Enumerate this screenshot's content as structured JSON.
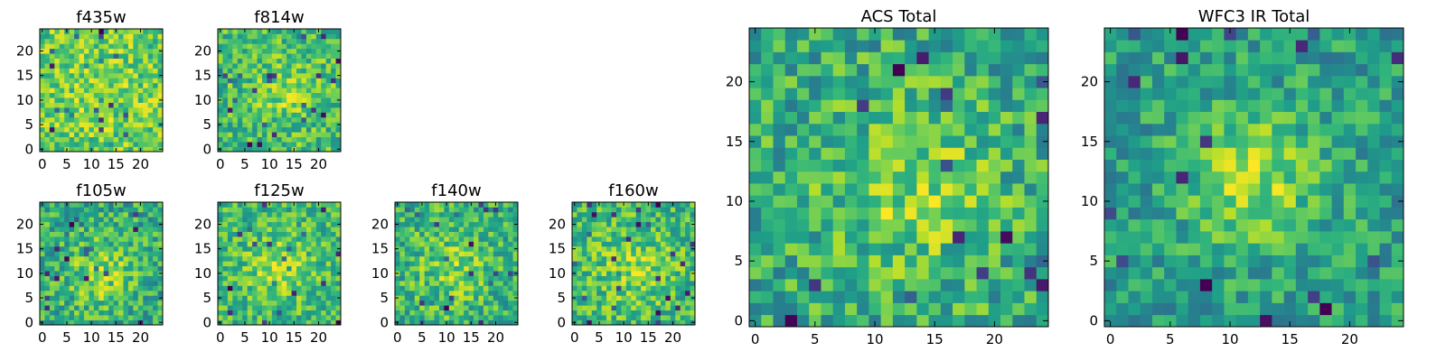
{
  "chart_data": [
    {
      "type": "heatmap",
      "title": "f435w",
      "size": 25,
      "seed": 11,
      "peak": [
        12,
        12
      ],
      "sigma": 6,
      "amp": 0.05,
      "xticks": [
        0,
        5,
        10,
        15,
        20
      ],
      "yticks": [
        0,
        5,
        10,
        15,
        20
      ],
      "xlim": [
        -0.5,
        24.5
      ],
      "ylim": [
        -0.5,
        24.5
      ],
      "colormap": "viridis"
    },
    {
      "type": "heatmap",
      "title": "f814w",
      "size": 25,
      "seed": 23,
      "peak": [
        13,
        12
      ],
      "sigma": 4,
      "amp": 0.2,
      "xticks": [
        0,
        5,
        10,
        15,
        20
      ],
      "yticks": [
        0,
        5,
        10,
        15,
        20
      ],
      "xlim": [
        -0.5,
        24.5
      ],
      "ylim": [
        -0.5,
        24.5
      ],
      "colormap": "viridis"
    },
    {
      "type": "heatmap",
      "title": "f105w",
      "size": 25,
      "seed": 37,
      "peak": [
        12,
        10
      ],
      "sigma": 5,
      "amp": 0.25,
      "xticks": [
        0,
        5,
        10,
        15,
        20
      ],
      "yticks": [
        0,
        5,
        10,
        15,
        20
      ],
      "xlim": [
        -0.5,
        24.5
      ],
      "ylim": [
        -0.5,
        24.5
      ],
      "colormap": "viridis"
    },
    {
      "type": "heatmap",
      "title": "f125w",
      "size": 25,
      "seed": 41,
      "peak": [
        12,
        11
      ],
      "sigma": 5,
      "amp": 0.25,
      "xticks": [
        0,
        5,
        10,
        15,
        20
      ],
      "yticks": [
        0,
        5,
        10,
        15,
        20
      ],
      "xlim": [
        -0.5,
        24.5
      ],
      "ylim": [
        -0.5,
        24.5
      ],
      "colormap": "viridis"
    },
    {
      "type": "heatmap",
      "title": "f140w",
      "size": 25,
      "seed": 53,
      "peak": [
        12,
        11
      ],
      "sigma": 6,
      "amp": 0.2,
      "xticks": [
        0,
        5,
        10,
        15,
        20
      ],
      "yticks": [
        0,
        5,
        10,
        15,
        20
      ],
      "xlim": [
        -0.5,
        24.5
      ],
      "ylim": [
        -0.5,
        24.5
      ],
      "colormap": "viridis"
    },
    {
      "type": "heatmap",
      "title": "f160w",
      "size": 25,
      "seed": 67,
      "peak": [
        12,
        11
      ],
      "sigma": 6,
      "amp": 0.2,
      "xticks": [
        0,
        5,
        10,
        15,
        20
      ],
      "yticks": [
        0,
        5,
        10,
        15,
        20
      ],
      "xlim": [
        -0.5,
        24.5
      ],
      "ylim": [
        -0.5,
        24.5
      ],
      "colormap": "viridis"
    },
    {
      "type": "heatmap",
      "title": "ACS Total",
      "size": 25,
      "seed": 79,
      "peak": [
        13,
        11
      ],
      "sigma": 5,
      "amp": 0.25,
      "xticks": [
        0,
        5,
        10,
        15,
        20
      ],
      "yticks": [
        0,
        5,
        10,
        15,
        20
      ],
      "xlim": [
        -0.5,
        24.5
      ],
      "ylim": [
        -0.5,
        24.5
      ],
      "colormap": "viridis"
    },
    {
      "type": "heatmap",
      "title": "WFC3 IR Total",
      "size": 25,
      "seed": 97,
      "peak": [
        12,
        12
      ],
      "sigma": 4,
      "amp": 0.45,
      "xticks": [
        0,
        5,
        10,
        15,
        20
      ],
      "yticks": [
        0,
        5,
        10,
        15,
        20
      ],
      "xlim": [
        -0.5,
        24.5
      ],
      "ylim": [
        -0.5,
        24.5
      ],
      "colormap": "viridis"
    }
  ]
}
